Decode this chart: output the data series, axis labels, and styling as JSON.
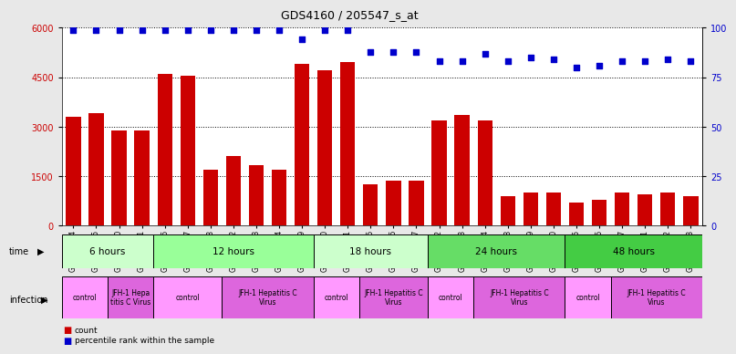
{
  "title": "GDS4160 / 205547_s_at",
  "samples": [
    "GSM523814",
    "GSM523815",
    "GSM523800",
    "GSM523801",
    "GSM523816",
    "GSM523817",
    "GSM523818",
    "GSM523802",
    "GSM523803",
    "GSM523804",
    "GSM523819",
    "GSM523820",
    "GSM523821",
    "GSM523805",
    "GSM523806",
    "GSM523807",
    "GSM523822",
    "GSM523823",
    "GSM523824",
    "GSM523808",
    "GSM523809",
    "GSM523810",
    "GSM523825",
    "GSM523826",
    "GSM523827",
    "GSM523811",
    "GSM523812",
    "GSM523813"
  ],
  "counts": [
    3300,
    3400,
    2900,
    2900,
    4600,
    4550,
    1700,
    2100,
    1850,
    1700,
    4900,
    4700,
    4950,
    1250,
    1380,
    1380,
    3180,
    3350,
    3200,
    900,
    1000,
    1000,
    700,
    800,
    1000,
    950,
    1000,
    900
  ],
  "percentile": [
    99,
    99,
    99,
    99,
    99,
    99,
    99,
    99,
    99,
    99,
    94,
    99,
    99,
    88,
    88,
    88,
    83,
    83,
    87,
    83,
    85,
    84,
    80,
    81,
    83,
    83,
    84,
    83
  ],
  "ylim_left": [
    0,
    6000
  ],
  "ylim_right": [
    0,
    100
  ],
  "yticks_left": [
    0,
    1500,
    3000,
    4500,
    6000
  ],
  "yticks_right": [
    0,
    25,
    50,
    75,
    100
  ],
  "bar_color": "#cc0000",
  "dot_color": "#0000cc",
  "time_groups": [
    {
      "label": "6 hours",
      "start": 0,
      "end": 4,
      "color": "#ccffcc"
    },
    {
      "label": "12 hours",
      "start": 4,
      "end": 11,
      "color": "#99ff99"
    },
    {
      "label": "18 hours",
      "start": 11,
      "end": 16,
      "color": "#ccffcc"
    },
    {
      "label": "24 hours",
      "start": 16,
      "end": 22,
      "color": "#66dd66"
    },
    {
      "label": "48 hours",
      "start": 22,
      "end": 28,
      "color": "#44cc44"
    }
  ],
  "infection_groups": [
    {
      "label": "control",
      "start": 0,
      "end": 2,
      "color": "#ff99ff"
    },
    {
      "label": "JFH-1 Hepa\ntitis C Virus",
      "start": 2,
      "end": 4,
      "color": "#dd66dd"
    },
    {
      "label": "control",
      "start": 4,
      "end": 7,
      "color": "#ff99ff"
    },
    {
      "label": "JFH-1 Hepatitis C\nVirus",
      "start": 7,
      "end": 11,
      "color": "#dd66dd"
    },
    {
      "label": "control",
      "start": 11,
      "end": 13,
      "color": "#ff99ff"
    },
    {
      "label": "JFH-1 Hepatitis C\nVirus",
      "start": 13,
      "end": 16,
      "color": "#dd66dd"
    },
    {
      "label": "control",
      "start": 16,
      "end": 18,
      "color": "#ff99ff"
    },
    {
      "label": "JFH-1 Hepatitis C\nVirus",
      "start": 18,
      "end": 22,
      "color": "#dd66dd"
    },
    {
      "label": "control",
      "start": 22,
      "end": 24,
      "color": "#ff99ff"
    },
    {
      "label": "JFH-1 Hepatitis C\nVirus",
      "start": 24,
      "end": 28,
      "color": "#dd66dd"
    }
  ],
  "background_color": "#e8e8e8",
  "plot_bg": "#ffffff",
  "legend_count_color": "#cc0000",
  "legend_pct_color": "#0000cc",
  "fig_width": 8.26,
  "fig_height": 3.84,
  "dpi": 100
}
